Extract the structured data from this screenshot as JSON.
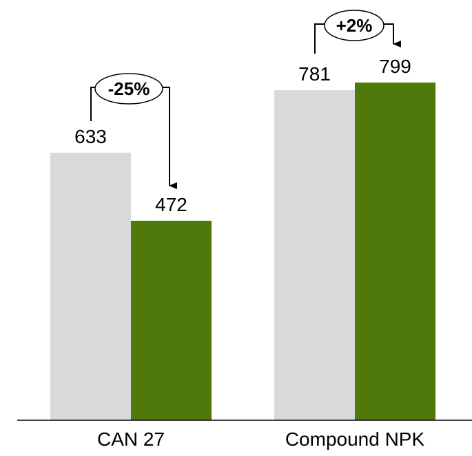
{
  "chart_data": {
    "type": "bar",
    "categories": [
      "CAN 27",
      "Compound NPK"
    ],
    "series": [
      {
        "values": [
          633,
          781
        ],
        "color": "#d9d9d9"
      },
      {
        "values": [
          472,
          799
        ],
        "color": "#4f7a0b"
      }
    ],
    "annotations": [
      {
        "category": "CAN 27",
        "text": "-25%"
      },
      {
        "category": "Compound NPK",
        "text": "+2%"
      }
    ],
    "axis_color": "#000000",
    "grid": false,
    "legend": "none"
  }
}
